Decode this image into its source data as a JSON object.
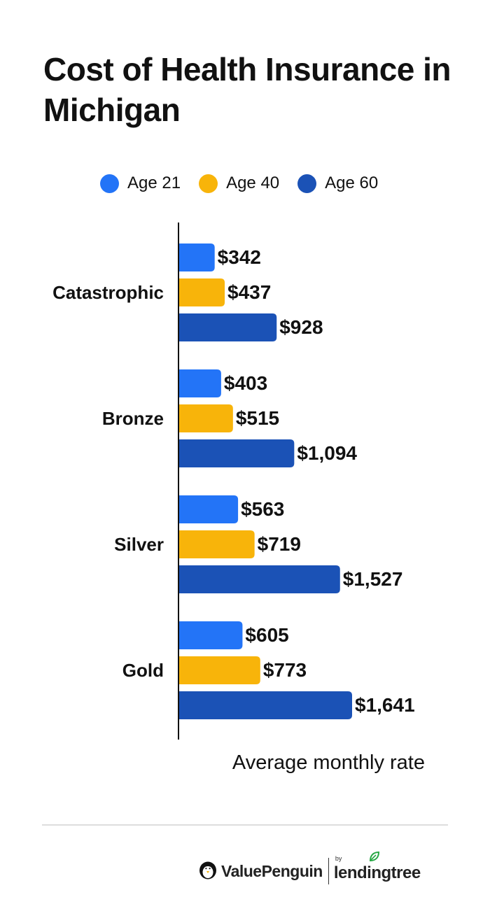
{
  "chart_data": {
    "type": "bar",
    "orientation": "horizontal",
    "title": "Cost of Health Insurance in Michigan",
    "xlabel": "Average monthly rate",
    "categories": [
      "Catastrophic",
      "Bronze",
      "Silver",
      "Gold"
    ],
    "series": [
      {
        "name": "Age 21",
        "color": "#2374f7",
        "values": [
          342,
          403,
          563,
          605
        ],
        "labels": [
          "$342",
          "$403",
          "$563",
          "$605"
        ]
      },
      {
        "name": "Age 40",
        "color": "#f8b40a",
        "values": [
          437,
          515,
          719,
          773
        ],
        "labels": [
          "$437",
          "$515",
          "$719",
          "$773"
        ]
      },
      {
        "name": "Age 60",
        "color": "#1b52b6",
        "values": [
          928,
          1094,
          1527,
          1641
        ],
        "labels": [
          "$928",
          "$1,094",
          "$1,527",
          "$1,641"
        ]
      }
    ],
    "xlim": [
      0,
      2000
    ],
    "legend": "top",
    "grid": false
  },
  "branding": {
    "brand_name": "ValuePenguin",
    "by_label": "by",
    "partner_name": "lendingtree",
    "brand_icon": "penguin-icon",
    "partner_icon": "leaf-icon"
  }
}
